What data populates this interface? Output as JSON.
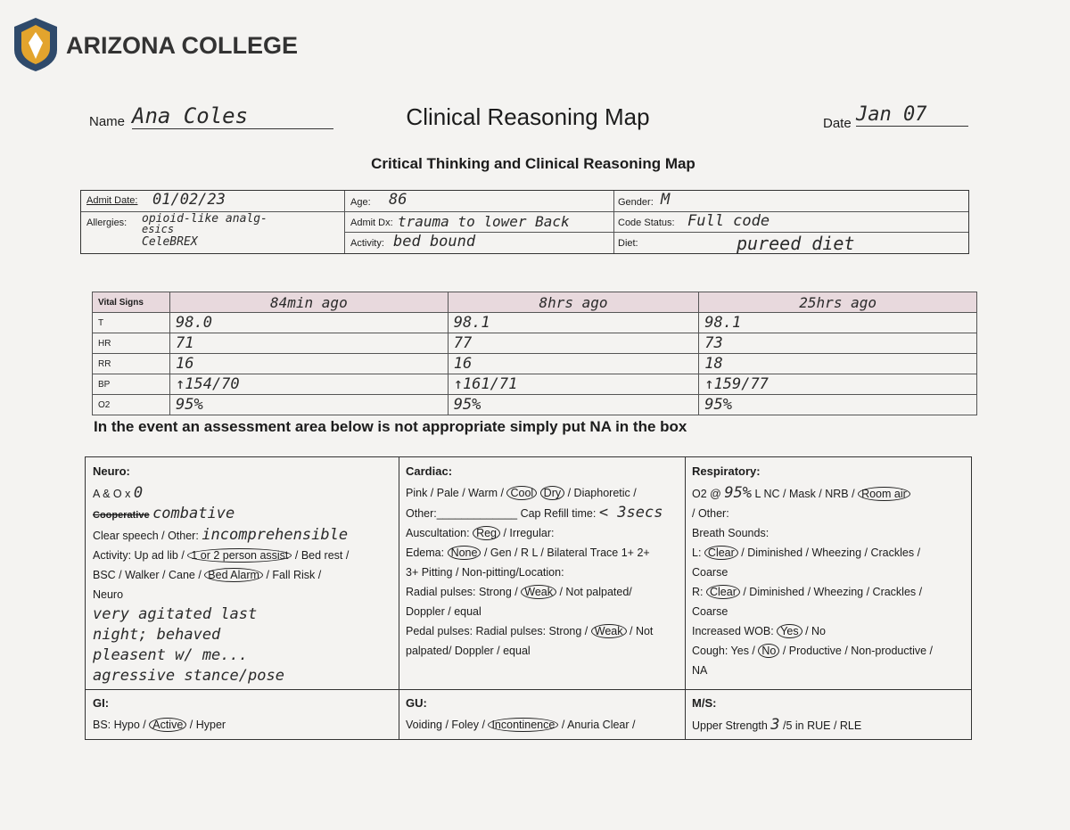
{
  "header": {
    "logo": "ARIZONA COLLEGE",
    "title": "Clinical Reasoning Map",
    "name_label": "Name",
    "name": "Ana Coles",
    "date_label": "Date",
    "date": "Jan 07",
    "subtitle": "Critical Thinking and Clinical Reasoning Map"
  },
  "patient": {
    "admit_date_label": "Admit Date:",
    "admit_date": "01/02/23",
    "allergies_label": "Allergies:",
    "allergies": [
      "opioid-like analg-",
      "esics",
      "CeleBREX"
    ],
    "age_label": "Age:",
    "age": "86",
    "admit_dx_label": "Admit Dx:",
    "admit_dx": "trauma to lower Back",
    "activity_label": "Activity:",
    "activity": "bed bound",
    "gender_label": "Gender:",
    "gender": "M",
    "code_status_label": "Code Status:",
    "code_status": "Full code",
    "diet_label": "Diet:",
    "diet": "pureed diet"
  },
  "vitals": {
    "header": "Vital Signs",
    "times": [
      "84min ago",
      "8hrs ago",
      "25hrs ago"
    ],
    "rows": [
      {
        "label": "T",
        "values": [
          "98.0",
          "98.1",
          "98.1"
        ]
      },
      {
        "label": "HR",
        "values": [
          "71",
          "77",
          "73"
        ]
      },
      {
        "label": "RR",
        "values": [
          "16",
          "16",
          "18"
        ]
      },
      {
        "label": "BP",
        "values": [
          "↑154/70",
          "↑161/71",
          "↑159/77"
        ]
      },
      {
        "label": "O2",
        "values": [
          "95%",
          "95%",
          "95%"
        ]
      }
    ]
  },
  "note": "In the event an assessment area below is not appropriate simply put NA in the box",
  "assessment": {
    "cells": [
      {
        "title": "Neuro:",
        "lines": [
          [
            "A & O x",
            {
              "text": "0",
              "mark": "hand"
            }
          ],
          [
            {
              "text": "Cooperative",
              "mark": "struck"
            },
            {
              "text": "combative",
              "mark": "hand"
            }
          ],
          [
            "Clear speech / Other:",
            {
              "text": "incomprehensible",
              "mark": "hand"
            }
          ],
          [
            "Activity: Up ad lib /",
            {
              "text": "1 or 2 person assist",
              "mark": "circled"
            },
            "/ Bed rest /"
          ],
          [
            "BSC / Walker / Cane /",
            {
              "text": "Bed Alarm",
              "mark": "circled"
            },
            "/ Fall Risk /"
          ],
          [
            "Neuro"
          ],
          [
            {
              "text": "very agitated last",
              "mark": "hand"
            }
          ],
          [
            {
              "text": "night; behaved",
              "mark": "hand"
            }
          ],
          [
            {
              "text": "pleasent w/ me...",
              "mark": "hand"
            }
          ],
          [
            {
              "text": "agressive stance/pose",
              "mark": "hand"
            }
          ]
        ]
      },
      {
        "title": "Cardiac:",
        "lines": [
          [
            "Pink / Pale / Warm /",
            {
              "text": "Cool",
              "mark": "circled"
            },
            {
              "text": "Dry",
              "mark": "circled"
            },
            "/ Diaphoretic /"
          ],
          [
            "Other:_____________ Cap Refill time:",
            {
              "text": "< 3secs",
              "mark": "hand"
            }
          ],
          [
            "Auscultation:",
            {
              "text": "Reg",
              "mark": "circled"
            },
            "/ Irregular:"
          ],
          [
            "Edema:",
            {
              "text": "None",
              "mark": "circled"
            },
            "/ Gen / R L / Bilateral Trace 1+ 2+"
          ],
          [
            "3+ Pitting / Non-pitting/Location:"
          ],
          [
            "Radial pulses: Strong /",
            {
              "text": "Weak",
              "mark": "circled"
            },
            "/ Not palpated/"
          ],
          [
            "Doppler / equal"
          ],
          [
            "Pedal pulses: Radial pulses: Strong /",
            {
              "text": "Weak",
              "mark": "circled"
            },
            "/ Not"
          ],
          [
            "palpated/ Doppler / equal"
          ]
        ]
      },
      {
        "title": "Respiratory:",
        "lines": [
          [
            "O2 @",
            {
              "text": "95%",
              "mark": "hand"
            },
            "L NC / Mask / NRB /",
            {
              "text": "Room air",
              "mark": "circled"
            }
          ],
          [
            "/ Other:"
          ],
          [
            "Breath Sounds:"
          ],
          [
            "L:",
            {
              "text": "Clear",
              "mark": "circled"
            },
            "/ Diminished / Wheezing / Crackles /"
          ],
          [
            "Coarse"
          ],
          [
            "R:",
            {
              "text": "Clear",
              "mark": "circled"
            },
            "/ Diminished / Wheezing / Crackles /"
          ],
          [
            "Coarse"
          ],
          [
            "Increased WOB:",
            {
              "text": "Yes",
              "mark": "circled"
            },
            "/ No"
          ],
          [
            "Cough: Yes /",
            {
              "text": "No",
              "mark": "circled"
            },
            "/ Productive / Non-productive /"
          ],
          [
            "NA"
          ]
        ]
      },
      {
        "title": "GI:",
        "lines": [
          [
            "BS: Hypo /",
            {
              "text": "Active",
              "mark": "circled"
            },
            "/ Hyper"
          ]
        ]
      },
      {
        "title": "GU:",
        "lines": [
          [
            "Voiding / Foley /",
            {
              "text": "Incontinence",
              "mark": "circled"
            },
            "/ Anuria Clear /"
          ]
        ]
      },
      {
        "title": "M/S:",
        "lines": [
          [
            "Upper Strength",
            {
              "text": "3",
              "mark": "hand"
            },
            "/5 in RUE / RLE"
          ]
        ]
      }
    ]
  }
}
